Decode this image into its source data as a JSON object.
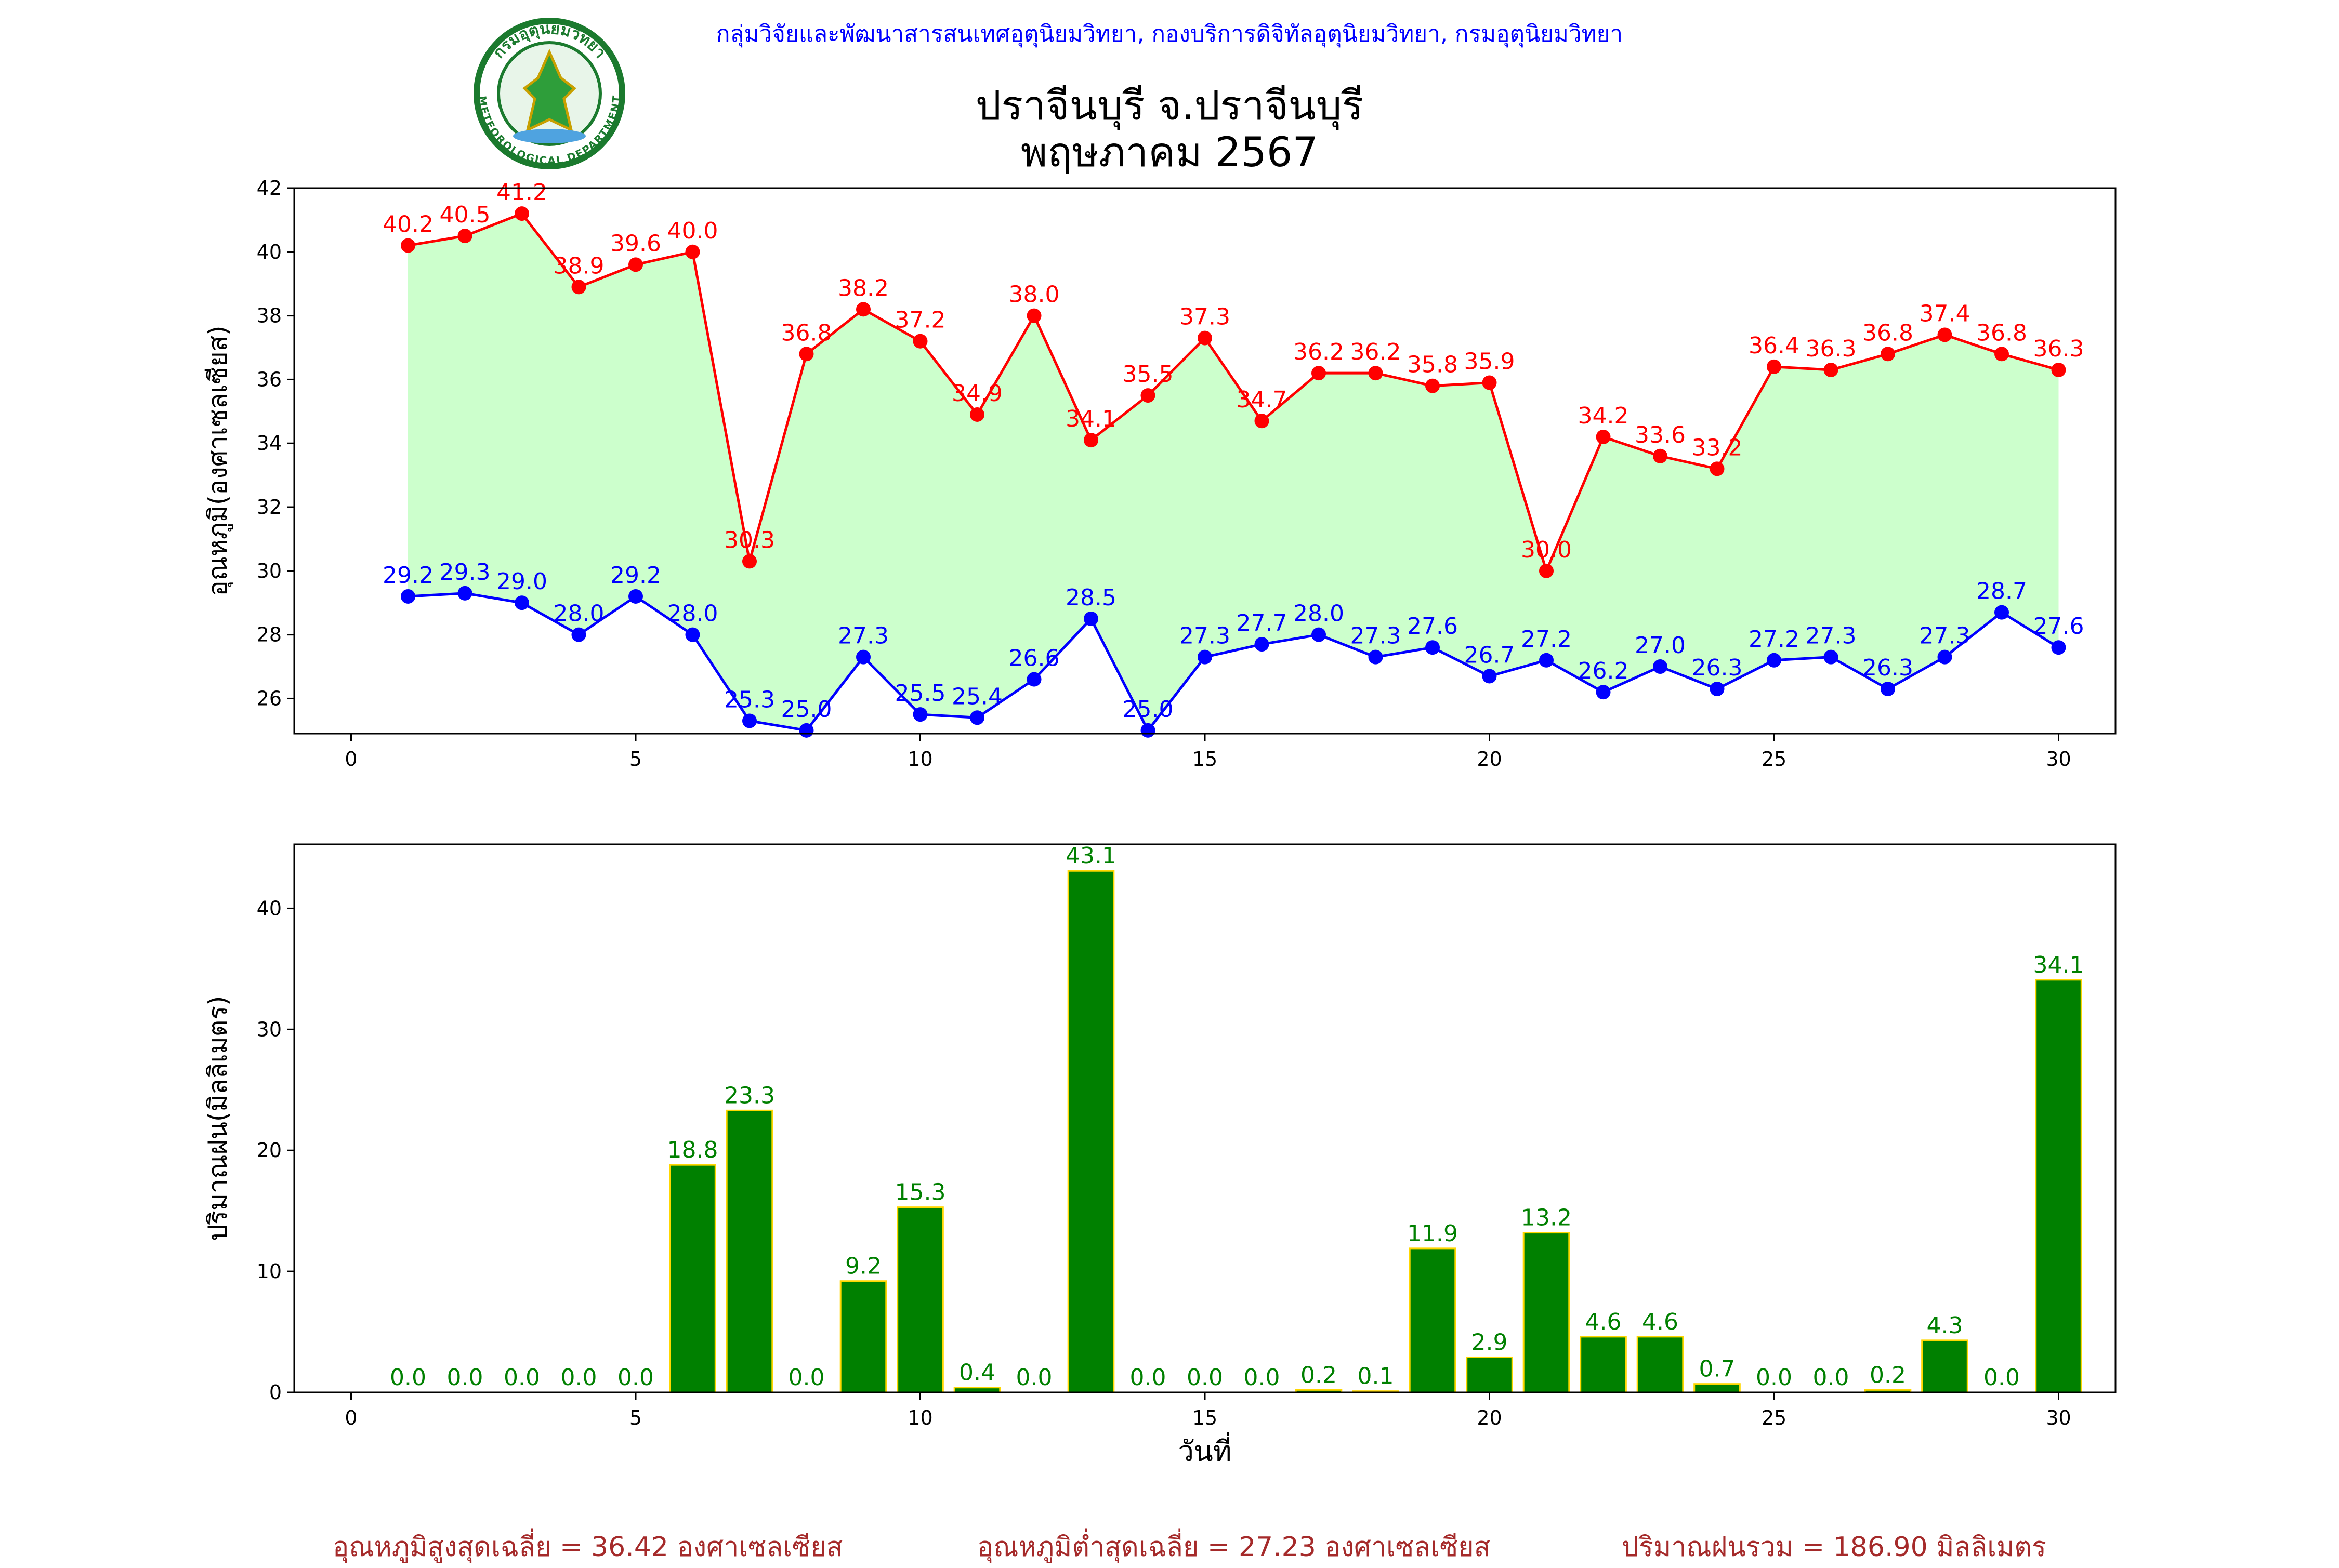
{
  "header": {
    "department": "กลุ่มวิจัยและพัฒนาสารสนเทศอุตุนิยมวิทยา, กองบริการดิจิทัลอุตุนิยมวิทยา, กรมอุตุนิยมวิทยา",
    "title_line1": "ปราจีนบุรี จ.ปราจีนบุรี",
    "title_line2": "พฤษภาคม 2567"
  },
  "logo": {
    "text": "กรมอุตุนิยมวิทยา",
    "subtext": "METEOROLOGICAL DEPARTMENT",
    "ring_color": "#1b7a2e"
  },
  "colors": {
    "max": "#ff0000",
    "min": "#0000ff",
    "fill": "#ccffcc",
    "bar": "#008000",
    "bar_edge": "#ffd700",
    "rain_label": "#008000",
    "stats": "#a52a2a"
  },
  "chart_data": [
    {
      "type": "line",
      "ylabel": "อุณหภูมิ(องศาเซลเซียส)",
      "xlabel": "",
      "xlim": [
        -1,
        31
      ],
      "ylim": [
        24.9,
        42
      ],
      "xticks": [
        0,
        5,
        10,
        15,
        20,
        25,
        30
      ],
      "yticks": [
        26,
        28,
        30,
        32,
        34,
        36,
        38,
        40,
        42
      ],
      "x": [
        1,
        2,
        3,
        4,
        5,
        6,
        7,
        8,
        9,
        10,
        11,
        12,
        13,
        14,
        15,
        16,
        17,
        18,
        19,
        20,
        21,
        22,
        23,
        24,
        25,
        26,
        27,
        28,
        29,
        30
      ],
      "series": [
        {
          "key": "max",
          "values": [
            40.2,
            40.5,
            41.2,
            38.9,
            39.6,
            40.0,
            30.3,
            36.8,
            38.2,
            37.2,
            34.9,
            38.0,
            34.1,
            35.5,
            37.3,
            34.7,
            36.2,
            36.2,
            35.8,
            35.9,
            30.0,
            34.2,
            33.6,
            33.2,
            36.4,
            36.3,
            36.8,
            37.4,
            36.8,
            36.3
          ]
        },
        {
          "key": "min",
          "values": [
            29.2,
            29.3,
            29.0,
            28.0,
            29.2,
            28.0,
            25.3,
            25.0,
            27.3,
            25.5,
            25.4,
            26.6,
            28.5,
            25.0,
            27.3,
            27.7,
            28.0,
            27.3,
            27.6,
            26.7,
            27.2,
            26.2,
            27.0,
            26.3,
            27.2,
            27.3,
            26.3,
            27.3,
            28.7,
            27.6
          ]
        }
      ]
    },
    {
      "type": "bar",
      "ylabel": "ปริมาณฝน(มิลลิเมตร)",
      "xlabel": "วันที่",
      "xlim": [
        -1,
        31
      ],
      "ylim": [
        0,
        45.3
      ],
      "xticks": [
        0,
        5,
        10,
        15,
        20,
        25,
        30
      ],
      "yticks": [
        0,
        10,
        20,
        30,
        40
      ],
      "x": [
        1,
        2,
        3,
        4,
        5,
        6,
        7,
        8,
        9,
        10,
        11,
        12,
        13,
        14,
        15,
        16,
        17,
        18,
        19,
        20,
        21,
        22,
        23,
        24,
        25,
        26,
        27,
        28,
        29,
        30
      ],
      "values": [
        0.0,
        0.0,
        0.0,
        0.0,
        0.0,
        18.8,
        23.3,
        0.0,
        9.2,
        15.3,
        0.4,
        0.0,
        43.1,
        0.0,
        0.0,
        0.0,
        0.2,
        0.1,
        11.9,
        2.9,
        13.2,
        4.6,
        4.6,
        0.7,
        0.0,
        0.0,
        0.2,
        4.3,
        0.0,
        34.1
      ]
    }
  ],
  "stats": {
    "avg_max": "อุณหภูมิสูงสุดเฉลี่ย = 36.42 องศาเซลเซียส",
    "avg_min": "อุณหภูมิต่ำสุดเฉลี่ย = 27.23 องศาเซลเซียส",
    "total_rain": "ปริมาณฝนรวม = 186.90 มิลลิเมตร"
  }
}
